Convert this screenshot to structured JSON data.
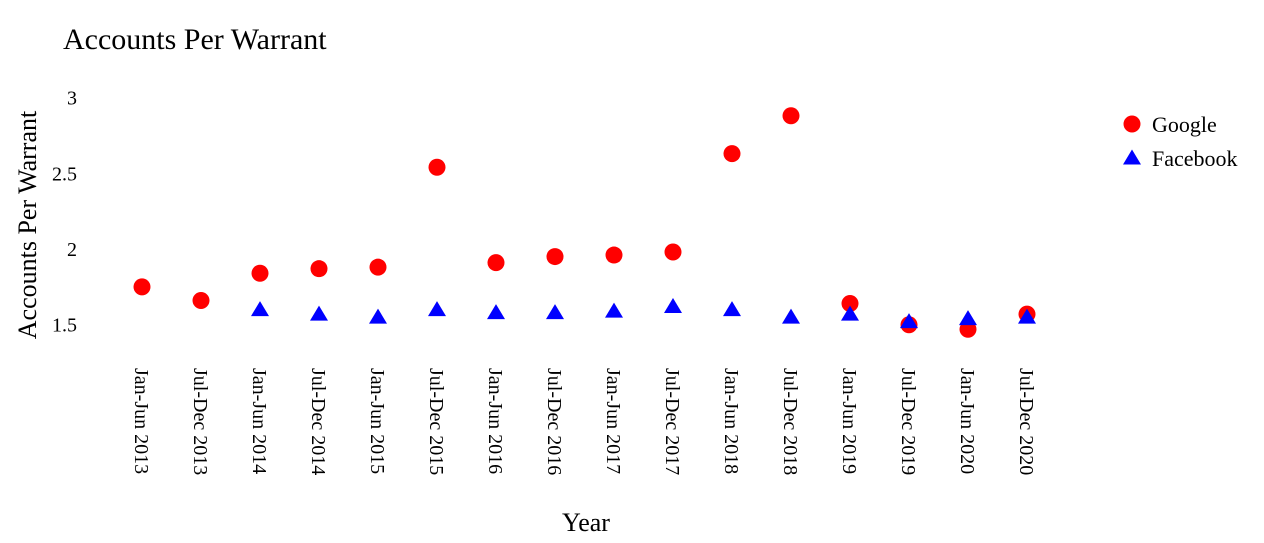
{
  "chart_data": {
    "type": "scatter",
    "title": "Accounts Per Warrant",
    "xlabel": "Year",
    "ylabel": "Accounts Per Warrant",
    "categories": [
      "Jan-Jun 2013",
      "Jul-Dec 2013",
      "Jan-Jun 2014",
      "Jul-Dec 2014",
      "Jan-Jun 2015",
      "Jul-Dec 2015",
      "Jan-Jun 2016",
      "Jul-Dec 2016",
      "Jan-Jun 2017",
      "Jul-Dec 2017",
      "Jan-Jun 2018",
      "Jul-Dec 2018",
      "Jan-Jun 2019",
      "Jul-Dec 2019",
      "Jan-Jun 2020",
      "Jul-Dec 2020"
    ],
    "ylim": [
      1.3,
      3.05
    ],
    "yticks": [
      {
        "value": 1.5,
        "label": "1.5"
      },
      {
        "value": 2,
        "label": "2"
      },
      {
        "value": 2.5,
        "label": "2.5"
      },
      {
        "value": 3,
        "label": "3"
      }
    ],
    "grid": false,
    "legend_position": "top-right",
    "series": [
      {
        "name": "Google",
        "marker": "circle",
        "color": "#ff0000",
        "values": [
          1.75,
          1.66,
          1.84,
          1.87,
          1.88,
          2.54,
          1.91,
          1.95,
          1.96,
          1.98,
          2.63,
          2.88,
          1.64,
          1.5,
          1.47,
          1.57
        ]
      },
      {
        "name": "Facebook",
        "marker": "triangle",
        "color": "#0000ff",
        "values": [
          null,
          null,
          1.6,
          1.57,
          1.55,
          1.6,
          1.58,
          1.58,
          1.59,
          1.62,
          1.6,
          1.55,
          1.57,
          1.52,
          1.54,
          1.55
        ]
      }
    ]
  }
}
